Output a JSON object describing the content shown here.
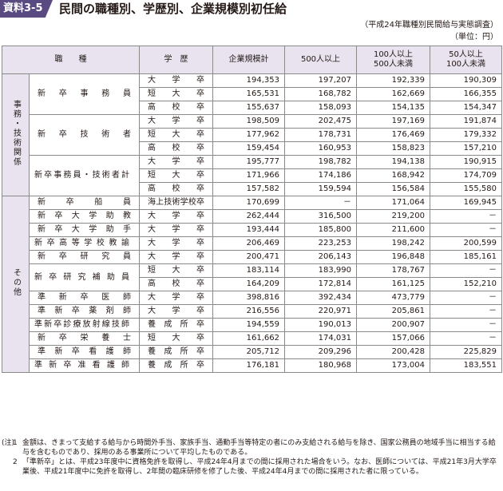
{
  "header": {
    "badge": "資料3-5",
    "title": "民間の職種別、学歴別、企業規模別初任給"
  },
  "source": "（平成24年職種別民間給与実態調査）",
  "unit": "（単位：円）",
  "columns": {
    "job": "職　　種",
    "edu": "学　歴",
    "all": "企業規模計",
    "c500": "500人以上",
    "c100_1": "100人以上",
    "c100_2": "500人未満",
    "c50_1": "50人以上",
    "c50_2": "100人未満"
  },
  "cat1": "事務・技術関係",
  "cat2": "その他",
  "rows1": [
    {
      "job": "新卒事務員",
      "items": [
        {
          "edu": "大学卒",
          "v": [
            "194,353",
            "197,207",
            "192,339",
            "190,309"
          ]
        },
        {
          "edu": "短大卒",
          "v": [
            "165,531",
            "168,782",
            "162,669",
            "166,355"
          ]
        },
        {
          "edu": "高校卒",
          "v": [
            "155,637",
            "158,093",
            "154,135",
            "154,347"
          ]
        }
      ]
    },
    {
      "job": "新卒技術者",
      "items": [
        {
          "edu": "大学卒",
          "v": [
            "198,509",
            "202,475",
            "197,169",
            "191,874"
          ]
        },
        {
          "edu": "短大卒",
          "v": [
            "177,962",
            "178,731",
            "176,469",
            "179,332"
          ]
        },
        {
          "edu": "高校卒",
          "v": [
            "159,454",
            "160,953",
            "158,823",
            "157,210"
          ]
        }
      ]
    },
    {
      "job": "新卒事務員・技術者計",
      "items": [
        {
          "edu": "大学卒",
          "v": [
            "195,777",
            "198,782",
            "194,138",
            "190,915"
          ]
        },
        {
          "edu": "短大卒",
          "v": [
            "171,966",
            "174,186",
            "168,942",
            "174,709"
          ]
        },
        {
          "edu": "高校卒",
          "v": [
            "157,582",
            "159,594",
            "156,584",
            "155,580"
          ]
        }
      ]
    }
  ],
  "rows2": [
    {
      "job": "新卒船員",
      "items": [
        {
          "edu": "海上技術学校卒",
          "v": [
            "170,699",
            "－",
            "171,064",
            "169,945"
          ]
        }
      ]
    },
    {
      "job": "新卒大学助教",
      "items": [
        {
          "edu": "大学卒",
          "v": [
            "262,444",
            "316,500",
            "219,200",
            "－"
          ]
        }
      ]
    },
    {
      "job": "新卒大学助手",
      "items": [
        {
          "edu": "大学卒",
          "v": [
            "193,444",
            "185,800",
            "211,600",
            "－"
          ]
        }
      ]
    },
    {
      "job": "新卒高等学校教諭",
      "items": [
        {
          "edu": "大学卒",
          "v": [
            "206,469",
            "223,253",
            "198,242",
            "200,599"
          ]
        }
      ]
    },
    {
      "job": "新卒研究員",
      "items": [
        {
          "edu": "大学卒",
          "v": [
            "200,471",
            "206,143",
            "196,848",
            "185,161"
          ]
        }
      ]
    },
    {
      "job": "新卒研究補助員",
      "items": [
        {
          "edu": "短大卒",
          "v": [
            "183,114",
            "183,990",
            "178,767",
            "－"
          ]
        },
        {
          "edu": "高校卒",
          "v": [
            "164,209",
            "172,814",
            "161,125",
            "152,210"
          ]
        }
      ]
    },
    {
      "job": "準新卒医師",
      "items": [
        {
          "edu": "大学卒",
          "v": [
            "398,816",
            "392,434",
            "473,779",
            "－"
          ]
        }
      ]
    },
    {
      "job": "準新卒薬剤師",
      "items": [
        {
          "edu": "大学卒",
          "v": [
            "216,556",
            "220,971",
            "205,861",
            "－"
          ]
        }
      ]
    },
    {
      "job": "準新卒診療放射線技師",
      "items": [
        {
          "edu": "養成所卒",
          "v": [
            "194,559",
            "190,013",
            "200,907",
            "－"
          ]
        }
      ]
    },
    {
      "job": "新卒栄養士",
      "items": [
        {
          "edu": "短大卒",
          "v": [
            "161,662",
            "174,031",
            "157,066",
            "－"
          ]
        }
      ]
    },
    {
      "job": "準新卒看護師",
      "items": [
        {
          "edu": "養成所卒",
          "v": [
            "205,712",
            "209,296",
            "200,428",
            "225,829"
          ]
        }
      ]
    },
    {
      "job": "準新卒准看護師",
      "items": [
        {
          "edu": "養成所卒",
          "v": [
            "176,181",
            "180,968",
            "173,004",
            "183,551"
          ]
        }
      ]
    }
  ],
  "notes": {
    "mark": "(注)",
    "n1": "1",
    "t1": "金額は、きまって支給する給与から時間外手当、家族手当、通勤手当等特定の者にのみ支給される給与を除き、国家公務員の地域手当に相当する給与を含むものであり、採用のある事業所について平均したものである。",
    "n2": "2",
    "t2": "「準新卒」とは、平成23年度中に資格免許を取得し、平成24年4月までの間に採用された場合をいう。なお、医師については、平成21年3月大学卒業後、平成21年度中に免許を取得し、2年間の臨床研修を修了した後、平成24年4月までの間に採用された者に限っている。"
  }
}
